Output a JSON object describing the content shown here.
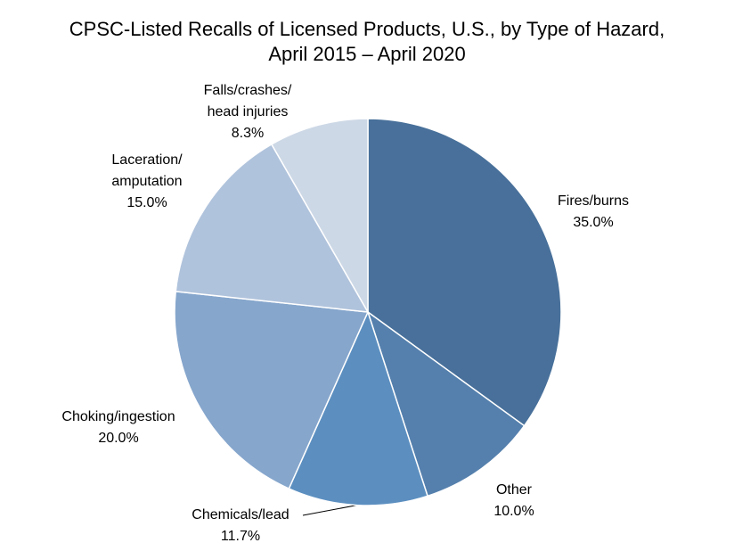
{
  "chart_data": {
    "type": "pie",
    "title": [
      "CPSC-Listed Recalls of Licensed Products, U.S., by Type of Hazard,",
      "April 2015 – April 2020"
    ],
    "labels": [
      [
        "Fires/burns"
      ],
      [
        "Other"
      ],
      [
        "Chemicals/lead"
      ],
      [
        "Choking/ingestion"
      ],
      [
        "Laceration/",
        "amputation"
      ],
      [
        "Falls/crashes/",
        "head injuries"
      ]
    ],
    "values": [
      35.0,
      10.0,
      11.7,
      20.0,
      15.0,
      8.3
    ],
    "value_labels": [
      "35.0%",
      "10.0%",
      "11.7%",
      "20.0%",
      "15.0%",
      "8.3%"
    ],
    "colors": [
      "#48709a",
      "#5580ad",
      "#5c8fc0",
      "#86a6cc",
      "#b0c3dc",
      "#cdd8e6"
    ]
  }
}
